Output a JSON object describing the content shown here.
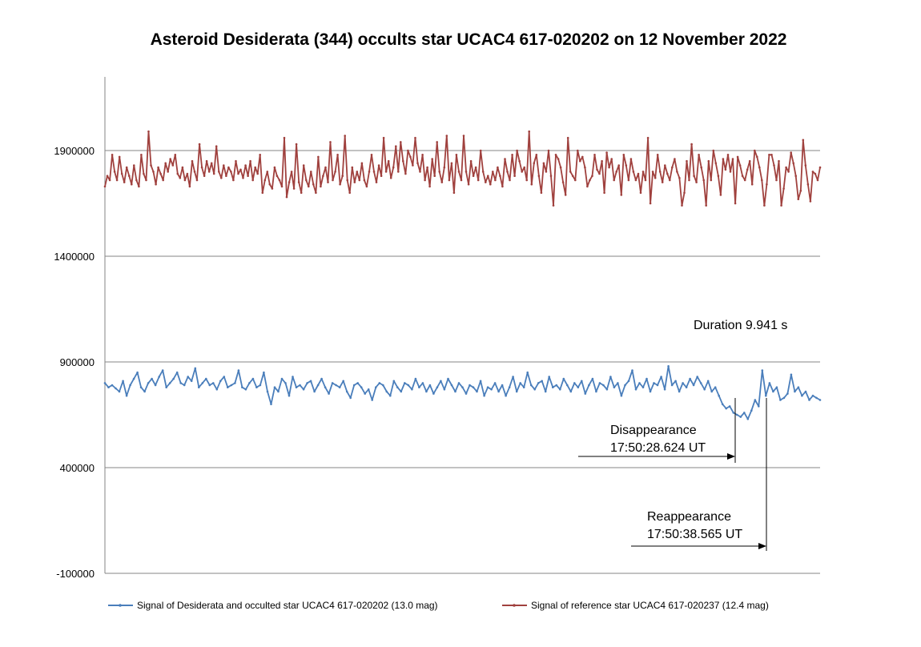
{
  "chart_data": {
    "type": "line",
    "title": "Asteroid Desiderata (344) occults star UCAC4 617-020202 on 12 November 2022",
    "xlabel": "",
    "ylabel": "",
    "ylim": [
      -100000,
      2350000
    ],
    "yticks": [
      -100000,
      400000,
      900000,
      1400000,
      1900000
    ],
    "grid": "horizontal",
    "legend_position": "bottom",
    "series": [
      {
        "name": "Signal of Desiderata and occulted star UCAC4 617-020202 (13.0 mag)",
        "color": "#4a7ebb",
        "values": [
          800000,
          780000,
          790000,
          775000,
          760000,
          810000,
          740000,
          790000,
          820000,
          850000,
          780000,
          760000,
          800000,
          820000,
          790000,
          830000,
          860000,
          780000,
          800000,
          820000,
          850000,
          800000,
          790000,
          830000,
          810000,
          870000,
          780000,
          800000,
          820000,
          790000,
          800000,
          770000,
          810000,
          830000,
          780000,
          790000,
          800000,
          860000,
          780000,
          770000,
          800000,
          820000,
          780000,
          790000,
          850000,
          760000,
          700000,
          780000,
          760000,
          820000,
          800000,
          740000,
          830000,
          780000,
          790000,
          770000,
          800000,
          810000,
          760000,
          790000,
          820000,
          780000,
          750000,
          800000,
          790000,
          780000,
          810000,
          760000,
          730000,
          790000,
          800000,
          780000,
          750000,
          770000,
          720000,
          780000,
          800000,
          790000,
          760000,
          740000,
          810000,
          780000,
          760000,
          800000,
          790000,
          770000,
          820000,
          780000,
          800000,
          760000,
          790000,
          750000,
          780000,
          810000,
          770000,
          820000,
          790000,
          760000,
          800000,
          780000,
          750000,
          790000,
          780000,
          760000,
          810000,
          740000,
          780000,
          770000,
          800000,
          760000,
          790000,
          740000,
          780000,
          830000,
          760000,
          800000,
          780000,
          850000,
          790000,
          770000,
          800000,
          810000,
          760000,
          830000,
          780000,
          790000,
          770000,
          820000,
          790000,
          760000,
          800000,
          780000,
          810000,
          750000,
          790000,
          820000,
          760000,
          800000,
          790000,
          770000,
          830000,
          780000,
          800000,
          740000,
          790000,
          810000,
          860000,
          770000,
          800000,
          780000,
          820000,
          760000,
          800000,
          790000,
          830000,
          770000,
          880000,
          790000,
          810000,
          760000,
          800000,
          780000,
          820000,
          790000,
          830000,
          800000,
          770000,
          810000,
          760000,
          780000,
          740000,
          700000,
          680000,
          690000,
          660000,
          650000,
          640000,
          660000,
          630000,
          670000,
          720000,
          690000,
          860000,
          740000,
          800000,
          760000,
          780000,
          720000,
          730000,
          750000,
          840000,
          760000,
          780000,
          740000,
          760000,
          720000,
          740000,
          730000,
          720000
        ]
      },
      {
        "name": "Signal of reference star UCAC4 617-020237 (12.4 mag)",
        "color": "#a0413e",
        "values": [
          1730000,
          1780000,
          1760000,
          1880000,
          1800000,
          1760000,
          1870000,
          1790000,
          1750000,
          1820000,
          1780000,
          1740000,
          1830000,
          1760000,
          1730000,
          1880000,
          1790000,
          1760000,
          1990000,
          1830000,
          1800000,
          1740000,
          1820000,
          1790000,
          1760000,
          1840000,
          1800000,
          1860000,
          1830000,
          1880000,
          1790000,
          1770000,
          1820000,
          1760000,
          1790000,
          1730000,
          1850000,
          1800000,
          1760000,
          1930000,
          1820000,
          1780000,
          1850000,
          1800000,
          1840000,
          1790000,
          1920000,
          1800000,
          1770000,
          1830000,
          1780000,
          1820000,
          1800000,
          1760000,
          1850000,
          1790000,
          1810000,
          1770000,
          1830000,
          1780000,
          1850000,
          1760000,
          1820000,
          1790000,
          1880000,
          1700000,
          1760000,
          1800000,
          1740000,
          1720000,
          1820000,
          1780000,
          1760000,
          1730000,
          1960000,
          1680000,
          1750000,
          1800000,
          1720000,
          1930000,
          1750000,
          1700000,
          1830000,
          1760000,
          1730000,
          1800000,
          1740000,
          1700000,
          1870000,
          1730000,
          1780000,
          1820000,
          1750000,
          1940000,
          1760000,
          1800000,
          1880000,
          1740000,
          1780000,
          1970000,
          1760000,
          1700000,
          1820000,
          1750000,
          1800000,
          1760000,
          1840000,
          1760000,
          1730000,
          1800000,
          1880000,
          1800000,
          1750000,
          1830000,
          1780000,
          1960000,
          1800000,
          1850000,
          1770000,
          1820000,
          1920000,
          1800000,
          1940000,
          1850000,
          1790000,
          1900000,
          1870000,
          1830000,
          1960000,
          1840000,
          1800000,
          1880000,
          1760000,
          1820000,
          1730000,
          1860000,
          1780000,
          1940000,
          1800000,
          1750000,
          1820000,
          1970000,
          1760000,
          1840000,
          1700000,
          1880000,
          1800000,
          1760000,
          1970000,
          1800000,
          1740000,
          1850000,
          1780000,
          1820000,
          1760000,
          1900000,
          1800000,
          1750000,
          1780000,
          1740000,
          1800000,
          1760000,
          1820000,
          1780000,
          1730000,
          1860000,
          1800000,
          1760000,
          1880000,
          1780000,
          1900000,
          1850000,
          1800000,
          1820000,
          1760000,
          1990000,
          1740000,
          1840000,
          1880000,
          1780000,
          1700000,
          1840000,
          1800000,
          1900000,
          1780000,
          1640000,
          1880000,
          1860000,
          1820000,
          1750000,
          1690000,
          1960000,
          1800000,
          1780000,
          1760000,
          1900000,
          1850000,
          1870000,
          1820000,
          1730000,
          1760000,
          1780000,
          1880000,
          1810000,
          1790000,
          1850000,
          1700000,
          1890000,
          1820000,
          1860000,
          1760000,
          1800000,
          1830000,
          1690000,
          1880000,
          1830000,
          1760000,
          1860000,
          1800000,
          1760000,
          1790000,
          1700000,
          1800000,
          1760000,
          1960000,
          1650000,
          1800000,
          1770000,
          1880000,
          1800000,
          1750000,
          1830000,
          1790000,
          1760000,
          1820000,
          1860000,
          1800000,
          1770000,
          1640000,
          1700000,
          1850000,
          1760000,
          1930000,
          1780000,
          1750000,
          1880000,
          1820000,
          1760000,
          1640000,
          1850000,
          1760000,
          1900000,
          1840000,
          1780000,
          1690000,
          1860000,
          1810000,
          1880000,
          1800000,
          1860000,
          1650000,
          1870000,
          1830000,
          1780000,
          1760000,
          1810000,
          1850000,
          1740000,
          1900000,
          1870000,
          1820000,
          1760000,
          1640000,
          1740000,
          1880000,
          1880000,
          1830000,
          1760000,
          1850000,
          1640000,
          1720000,
          1820000,
          1800000,
          1890000,
          1840000,
          1780000,
          1670000,
          1710000,
          1950000,
          1830000,
          1740000,
          1660000,
          1800000,
          1790000,
          1760000,
          1820000
        ]
      }
    ],
    "annotations": {
      "duration": "Duration 9.941 s",
      "disappearance_label": "Disappearance",
      "disappearance_time": "17:50:28.624 UT",
      "reappearance_label": "Reappearance",
      "reappearance_time": "17:50:38.565 UT"
    }
  }
}
